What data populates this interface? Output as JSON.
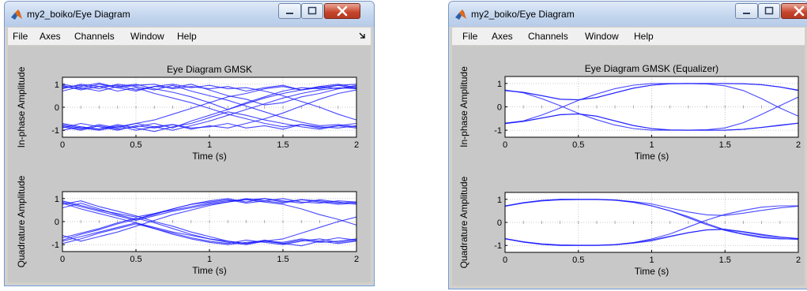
{
  "windows": [
    {
      "title": "my2_boiko/Eye Diagram",
      "menu": [
        "File",
        "Axes",
        "Channels",
        "Window",
        "Help"
      ],
      "plots": [
        {
          "title": "Eye Diagram GMSK",
          "ylabel": "In-phase Amplitude",
          "xlabel": "Time (s)",
          "xticks": [
            "0",
            "0.5",
            "1",
            "1.5",
            "2"
          ],
          "yticks": [
            "1",
            "0",
            "-1"
          ]
        },
        {
          "title": "",
          "ylabel": "Quadrature Amplitude",
          "xlabel": "Time (s)",
          "xticks": [
            "0",
            "0.5",
            "1",
            "1.5",
            "2"
          ],
          "yticks": [
            "1",
            "0",
            "-1"
          ]
        }
      ]
    },
    {
      "title": "my2_boiko/Eye Diagram",
      "menu": [
        "File",
        "Axes",
        "Channels",
        "Window",
        "Help"
      ],
      "plots": [
        {
          "title": "Eye Diagram GMSK (Equalizer)",
          "ylabel": "In-phase Amplitude",
          "xlabel": "Time (s)",
          "xticks": [
            "0",
            "0.5",
            "1",
            "1.5",
            "2"
          ],
          "yticks": [
            "1",
            "0",
            "-1"
          ]
        },
        {
          "title": "",
          "ylabel": "Quadrature Amplitude",
          "xlabel": "Time (s)",
          "xticks": [
            "0",
            "0.5",
            "1",
            "1.5",
            "2"
          ],
          "yticks": [
            "1",
            "0",
            "-1"
          ]
        }
      ]
    }
  ],
  "chart_data": [
    {
      "type": "line",
      "title": "Eye Diagram GMSK",
      "xlabel": "Time (s)",
      "ylabel": "In-phase Amplitude",
      "xlim": [
        0,
        2
      ],
      "ylim": [
        -1.3,
        1.3
      ],
      "series_color": "#1a1aff",
      "x": [
        0,
        0.125,
        0.25,
        0.375,
        0.5,
        0.625,
        0.75,
        0.875,
        1,
        1.125,
        1.25,
        1.375,
        1.5,
        1.625,
        1.75,
        1.875,
        2
      ],
      "series": [
        {
          "values": [
            0.85,
            0.95,
            0.8,
            1.0,
            0.9,
            0.75,
            0.95,
            0.7,
            0.5,
            0.3,
            0.05,
            -0.2,
            -0.45,
            -0.65,
            -0.8,
            -0.75,
            -0.85
          ]
        },
        {
          "values": [
            0.7,
            0.9,
            1.05,
            0.85,
            0.95,
            1.0,
            0.8,
            0.9,
            0.8,
            0.9,
            0.7,
            0.85,
            0.95,
            0.75,
            0.9,
            1.0,
            0.85
          ]
        },
        {
          "values": [
            0.95,
            0.75,
            0.9,
            0.7,
            0.85,
            0.6,
            0.4,
            0.2,
            -0.05,
            -0.3,
            -0.5,
            -0.7,
            -0.85,
            -0.75,
            -0.9,
            -0.8,
            -0.7
          ]
        },
        {
          "values": [
            0.8,
            1.0,
            0.9,
            0.95,
            0.75,
            0.9,
            0.85,
            1.0,
            0.75,
            0.5,
            0.35,
            0.1,
            0.2,
            0.45,
            0.6,
            0.8,
            0.9
          ]
        },
        {
          "values": [
            1.0,
            0.85,
            0.7,
            0.9,
            1.0,
            0.8,
            0.65,
            0.45,
            0.2,
            -0.1,
            0.15,
            0.4,
            0.6,
            0.75,
            0.9,
            0.8,
            0.95
          ]
        },
        {
          "values": [
            -0.8,
            -0.95,
            -0.75,
            -0.9,
            -0.7,
            -0.85,
            -1.0,
            -0.8,
            -0.6,
            -0.35,
            -0.1,
            0.15,
            0.4,
            0.6,
            0.75,
            0.85,
            0.8
          ]
        },
        {
          "values": [
            -0.9,
            -0.7,
            -0.85,
            -1.0,
            -0.8,
            -0.9,
            -0.75,
            -0.9,
            -0.85,
            -0.7,
            -0.9,
            -0.8,
            -0.95,
            -0.75,
            -0.85,
            -0.9,
            -0.8
          ]
        },
        {
          "values": [
            -0.75,
            -0.9,
            -1.0,
            -0.85,
            -0.7,
            -0.55,
            -0.3,
            -0.05,
            0.2,
            0.45,
            0.6,
            0.8,
            0.9,
            0.75,
            0.85,
            0.95,
            0.8
          ]
        },
        {
          "values": [
            -1.0,
            -0.85,
            -0.95,
            -0.75,
            -0.9,
            -1.05,
            -0.85,
            -0.7,
            -0.45,
            -0.2,
            -0.35,
            -0.55,
            -0.7,
            -0.85,
            -0.95,
            -0.8,
            -0.9
          ]
        },
        {
          "values": [
            -0.85,
            -1.0,
            -0.8,
            -0.95,
            -0.85,
            -0.7,
            -0.9,
            -0.6,
            -0.35,
            -0.1,
            0.2,
            0.45,
            0.7,
            0.85,
            0.8,
            0.95,
            1.0
          ]
        },
        {
          "values": [
            0.9,
            0.8,
            1.0,
            0.85,
            0.7,
            0.9,
            1.0,
            0.85,
            0.95,
            0.8,
            0.85,
            0.7,
            0.5,
            0.25,
            0.0,
            -0.3,
            -0.55
          ]
        },
        {
          "values": [
            -0.7,
            -0.85,
            -0.95,
            -0.8,
            -1.0,
            -0.85,
            -0.75,
            -0.95,
            -0.8,
            -0.9,
            -0.7,
            -0.5,
            -0.25,
            0.05,
            0.35,
            0.6,
            0.75
          ]
        }
      ]
    },
    {
      "type": "line",
      "title": "",
      "xlabel": "Time (s)",
      "ylabel": "Quadrature Amplitude",
      "xlim": [
        0,
        2
      ],
      "ylim": [
        -1.3,
        1.3
      ],
      "series_color": "#1a1aff",
      "x": [
        0,
        0.125,
        0.25,
        0.375,
        0.5,
        0.625,
        0.75,
        0.875,
        1,
        1.125,
        1.25,
        1.375,
        1.5,
        1.625,
        1.75,
        1.875,
        2
      ],
      "series": [
        {
          "values": [
            0.8,
            0.55,
            0.35,
            0.15,
            -0.05,
            -0.3,
            -0.5,
            -0.7,
            -0.85,
            -0.95,
            -0.8,
            -0.9,
            -1.0,
            -0.85,
            -0.75,
            -0.9,
            -0.8
          ]
        },
        {
          "values": [
            0.9,
            0.7,
            0.5,
            0.35,
            0.2,
            0.35,
            0.5,
            0.65,
            0.8,
            0.9,
            0.95,
            1.0,
            0.85,
            0.95,
            0.9,
            0.8,
            0.85
          ]
        },
        {
          "values": [
            0.75,
            0.9,
            0.65,
            0.45,
            0.25,
            0.0,
            -0.2,
            -0.45,
            -0.65,
            -0.85,
            -0.95,
            -0.8,
            -0.95,
            -1.05,
            -0.85,
            -0.7,
            -0.8
          ]
        },
        {
          "values": [
            0.6,
            0.8,
            0.55,
            0.3,
            0.1,
            0.3,
            0.55,
            0.75,
            0.9,
            1.0,
            0.85,
            1.0,
            0.9,
            0.8,
            0.95,
            0.85,
            0.75
          ]
        },
        {
          "values": [
            -0.8,
            -0.55,
            -0.35,
            -0.1,
            0.1,
            0.35,
            0.55,
            0.75,
            0.85,
            0.95,
            0.8,
            0.9,
            1.0,
            0.85,
            0.8,
            0.9,
            0.85
          ]
        },
        {
          "values": [
            -0.95,
            -0.75,
            -0.5,
            -0.3,
            -0.1,
            -0.3,
            -0.55,
            -0.75,
            -0.9,
            -1.0,
            -0.9,
            -0.85,
            -0.95,
            -0.8,
            -0.9,
            -0.85,
            -0.75
          ]
        },
        {
          "values": [
            -0.6,
            -0.85,
            -0.65,
            -0.45,
            -0.2,
            0.05,
            0.3,
            0.5,
            0.7,
            0.85,
            1.0,
            0.9,
            0.8,
            0.95,
            0.85,
            0.75,
            0.8
          ]
        },
        {
          "values": [
            -0.7,
            -0.5,
            -0.3,
            -0.05,
            0.15,
            -0.05,
            -0.3,
            -0.55,
            -0.75,
            -0.9,
            -1.0,
            -0.85,
            -0.9,
            -0.75,
            -0.85,
            -0.95,
            -0.85
          ]
        },
        {
          "values": [
            0.85,
            0.65,
            0.45,
            0.25,
            0.05,
            0.25,
            0.45,
            0.6,
            0.75,
            0.85,
            0.95,
            0.85,
            0.75,
            0.55,
            0.3,
            0.1,
            -0.15
          ]
        },
        {
          "values": [
            -0.85,
            -0.65,
            -0.45,
            -0.25,
            -0.05,
            -0.25,
            -0.45,
            -0.6,
            -0.75,
            -0.85,
            -0.95,
            -0.85,
            -0.75,
            -0.5,
            -0.25,
            0.0,
            0.2
          ]
        }
      ]
    },
    {
      "type": "line",
      "title": "Eye Diagram GMSK (Equalizer)",
      "xlabel": "Time (s)",
      "ylabel": "In-phase Amplitude",
      "xlim": [
        0,
        2
      ],
      "ylim": [
        -1.3,
        1.3
      ],
      "series_color": "#1a1aff",
      "x": [
        0,
        0.125,
        0.25,
        0.375,
        0.5,
        0.625,
        0.75,
        0.875,
        1,
        1.125,
        1.25,
        1.375,
        1.5,
        1.625,
        1.75,
        1.875,
        2
      ],
      "series": [
        {
          "values": [
            0.7,
            0.62,
            0.48,
            0.32,
            0.3,
            0.4,
            0.6,
            0.8,
            0.93,
            0.99,
            1.0,
            1.0,
            1.0,
            0.99,
            0.95,
            0.85,
            0.7
          ]
        },
        {
          "values": [
            0.72,
            0.6,
            0.35,
            0.05,
            -0.28,
            -0.55,
            -0.78,
            -0.93,
            -1.0,
            -1.0,
            -1.0,
            -1.0,
            -1.0,
            -0.96,
            -0.88,
            -0.78,
            -0.7
          ]
        },
        {
          "values": [
            -0.7,
            -0.6,
            -0.35,
            -0.05,
            0.28,
            0.55,
            0.78,
            0.93,
            1.0,
            1.0,
            1.0,
            1.0,
            1.0,
            0.99,
            0.95,
            0.85,
            0.72
          ]
        },
        {
          "values": [
            -0.72,
            -0.62,
            -0.48,
            -0.34,
            -0.3,
            -0.4,
            -0.6,
            -0.8,
            -0.93,
            -0.99,
            -1.0,
            -1.0,
            -1.0,
            -0.96,
            -0.88,
            -0.8,
            -0.7
          ]
        },
        {
          "values": [
            0.7,
            0.62,
            0.48,
            0.33,
            0.3,
            0.4,
            0.6,
            0.8,
            0.93,
            0.99,
            1.0,
            0.98,
            0.9,
            0.7,
            0.35,
            -0.05,
            -0.4
          ]
        },
        {
          "values": [
            -0.7,
            -0.62,
            -0.48,
            -0.33,
            -0.3,
            -0.4,
            -0.6,
            -0.8,
            -0.93,
            -0.99,
            -1.0,
            -0.98,
            -0.9,
            -0.68,
            -0.32,
            0.05,
            0.42
          ]
        }
      ]
    },
    {
      "type": "line",
      "title": "",
      "xlabel": "Time (s)",
      "ylabel": "Quadrature Amplitude",
      "xlim": [
        0,
        2
      ],
      "ylim": [
        -1.3,
        1.3
      ],
      "series_color": "#1a1aff",
      "x": [
        0,
        0.125,
        0.25,
        0.375,
        0.5,
        0.625,
        0.75,
        0.875,
        1,
        1.125,
        1.25,
        1.375,
        1.5,
        1.625,
        1.75,
        1.875,
        2
      ],
      "series": [
        {
          "values": [
            0.7,
            0.85,
            0.95,
            1.0,
            1.0,
            1.0,
            0.97,
            0.88,
            0.72,
            0.5,
            0.2,
            -0.1,
            -0.35,
            -0.52,
            -0.66,
            -0.72,
            -0.72
          ]
        },
        {
          "values": [
            0.72,
            0.86,
            0.95,
            1.0,
            1.0,
            1.0,
            0.97,
            0.9,
            0.8,
            0.62,
            0.45,
            0.33,
            0.3,
            0.4,
            0.52,
            0.63,
            0.7
          ]
        },
        {
          "values": [
            -0.7,
            -0.85,
            -0.95,
            -1.0,
            -1.0,
            -1.0,
            -0.97,
            -0.88,
            -0.72,
            -0.5,
            -0.2,
            0.1,
            0.35,
            0.52,
            0.66,
            0.72,
            0.72
          ]
        },
        {
          "values": [
            -0.72,
            -0.86,
            -0.95,
            -1.0,
            -1.0,
            -1.0,
            -0.97,
            -0.9,
            -0.8,
            -0.62,
            -0.45,
            -0.33,
            -0.3,
            -0.4,
            -0.52,
            -0.63,
            -0.7
          ]
        },
        {
          "values": [
            0.7,
            0.84,
            0.93,
            0.98,
            0.99,
            0.99,
            0.96,
            0.87,
            0.72,
            0.5,
            0.25,
            -0.05,
            -0.32,
            -0.5,
            -0.62,
            -0.7,
            -0.74
          ]
        },
        {
          "values": [
            -0.7,
            -0.84,
            -0.93,
            -0.98,
            -0.99,
            -0.99,
            -0.96,
            -0.88,
            -0.76,
            -0.6,
            -0.44,
            -0.32,
            -0.3,
            -0.42,
            -0.55,
            -0.65,
            -0.7
          ]
        }
      ]
    }
  ]
}
